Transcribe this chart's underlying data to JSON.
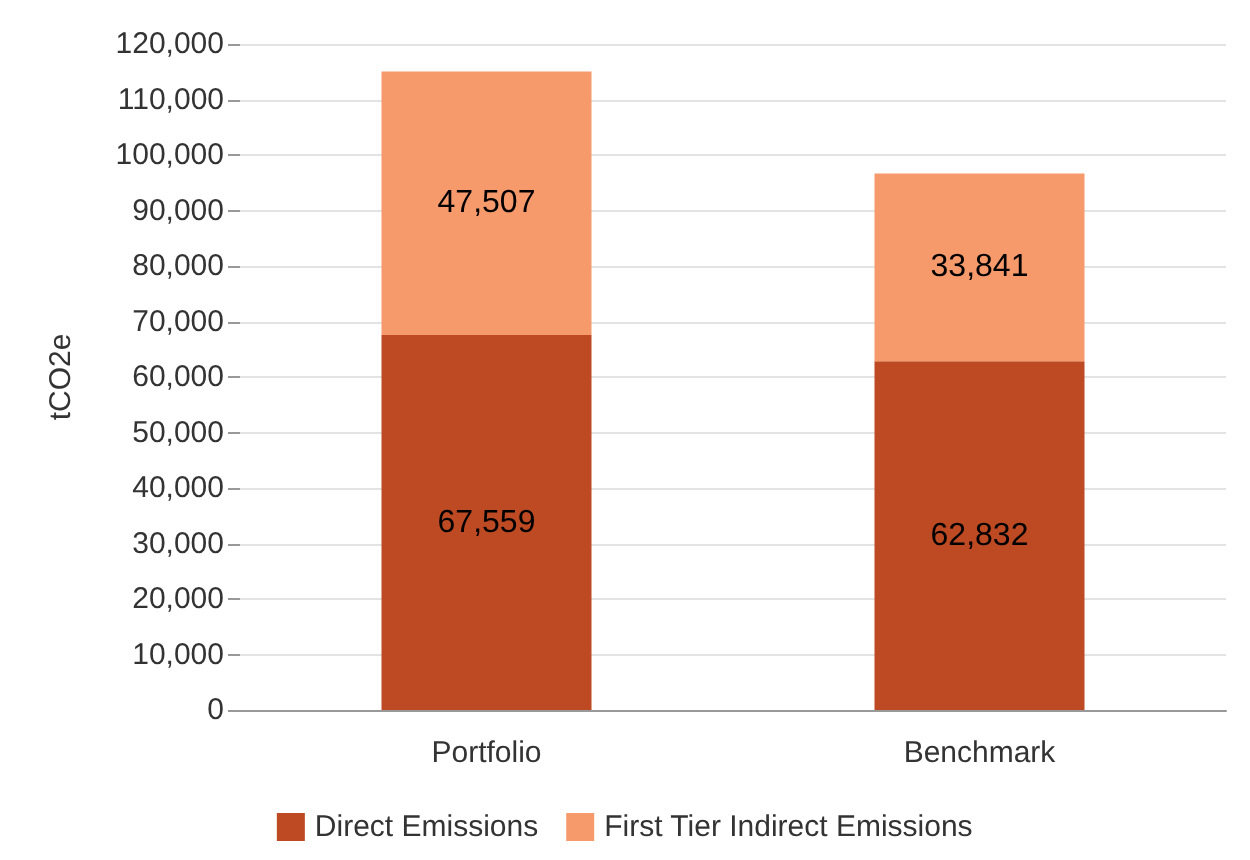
{
  "chart_data": {
    "type": "bar",
    "stacked": true,
    "ylabel": "tCO2e",
    "categories": [
      "Portfolio",
      "Benchmark"
    ],
    "series": [
      {
        "name": "Direct Emissions",
        "color": "#bd4a22",
        "values": [
          67559,
          62832
        ],
        "value_labels": [
          "67,559",
          "62,832"
        ]
      },
      {
        "name": "First Tier Indirect Emissions",
        "color": "#f79a6b",
        "values": [
          47507,
          33841
        ],
        "value_labels": [
          "47,507",
          "33,841"
        ]
      }
    ],
    "ylim": [
      0,
      120000
    ],
    "yticks": [
      {
        "value": 0,
        "label": "0"
      },
      {
        "value": 10000,
        "label": "10,000"
      },
      {
        "value": 20000,
        "label": "20,000"
      },
      {
        "value": 30000,
        "label": "30,000"
      },
      {
        "value": 40000,
        "label": "40,000"
      },
      {
        "value": 50000,
        "label": "50,000"
      },
      {
        "value": 60000,
        "label": "60,000"
      },
      {
        "value": 70000,
        "label": "70,000"
      },
      {
        "value": 80000,
        "label": "80,000"
      },
      {
        "value": 90000,
        "label": "90,000"
      },
      {
        "value": 100000,
        "label": "100,000"
      },
      {
        "value": 110000,
        "label": "110,000"
      },
      {
        "value": 120000,
        "label": "120,000"
      }
    ],
    "grid": "y",
    "legend": "bottom"
  }
}
